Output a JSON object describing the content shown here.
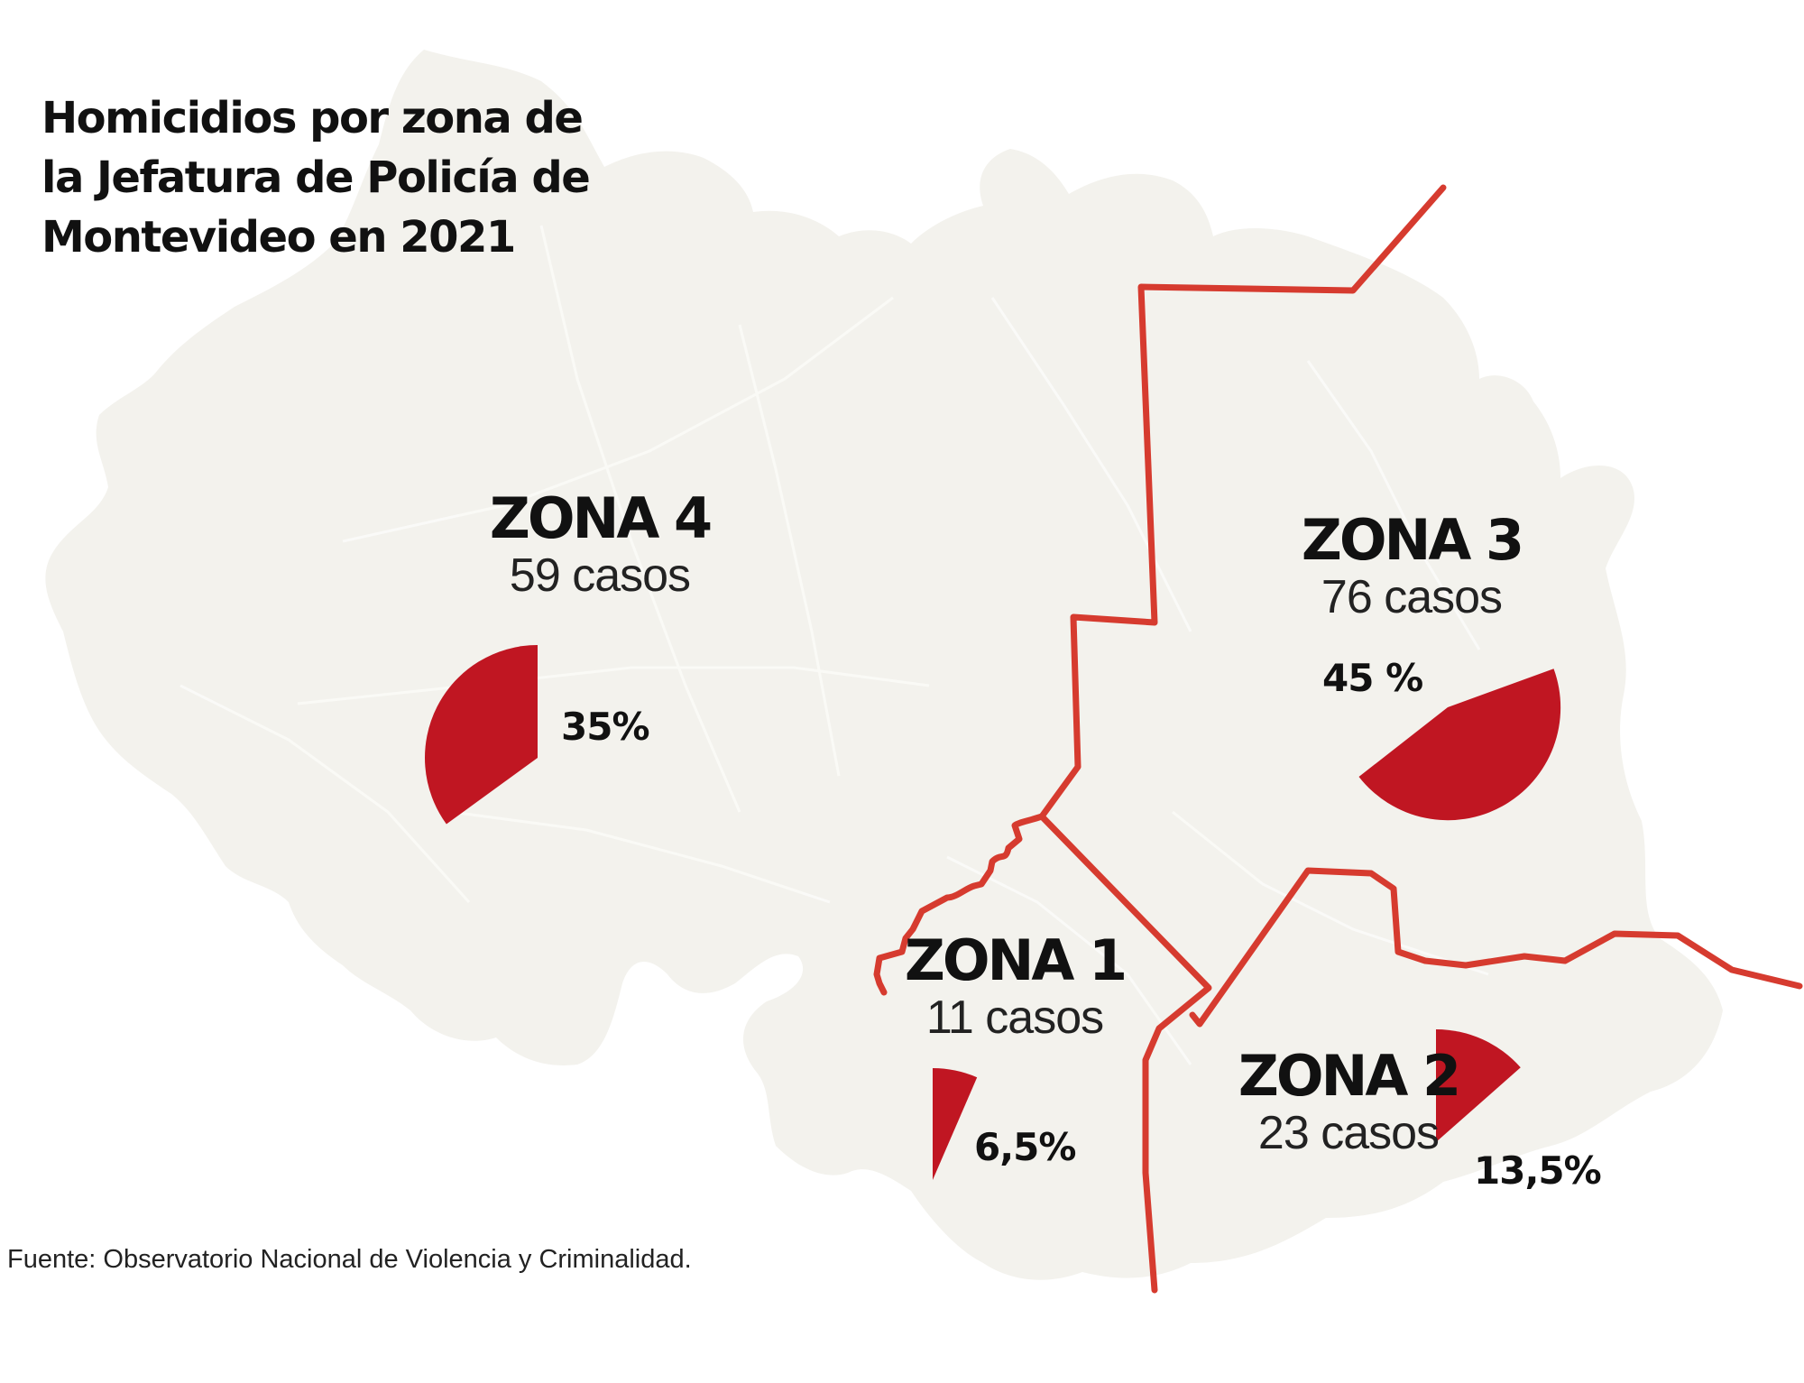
{
  "title_lines": [
    "Homicidios por zona de",
    "la Jefatura de Policía de",
    "Montevideo en 2021"
  ],
  "zones": [
    {
      "name": "ZONA 1",
      "cases_label": "11 casos",
      "cases": 11,
      "percent_label": "6,5%",
      "percent": 6.5
    },
    {
      "name": "ZONA 2",
      "cases_label": "23 casos",
      "cases": 23,
      "percent_label": "13,5%",
      "percent": 13.5
    },
    {
      "name": "ZONA 3",
      "cases_label": "76 casos",
      "cases": 76,
      "percent_label": "45 %",
      "percent": 45
    },
    {
      "name": "ZONA 4",
      "cases_label": "59 casos",
      "cases": 59,
      "percent_label": "35%",
      "percent": 35
    }
  ],
  "source": "Fuente: Observatorio Nacional de Violencia y Criminalidad.",
  "colors": {
    "land": "#f3f2ed",
    "boundary": "#d63b2f",
    "pie": "#c01622",
    "road": "#fbfbf8"
  }
}
